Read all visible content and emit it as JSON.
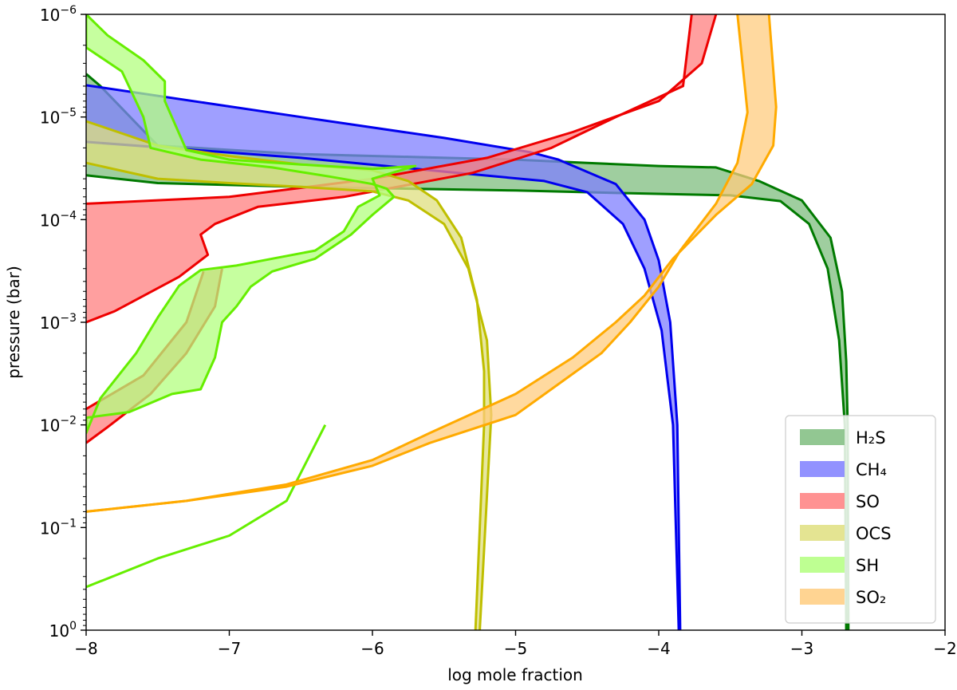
{
  "chart_data": {
    "type": "area",
    "xlabel": "log  mole fraction",
    "ylabel": "pressure (bar)",
    "xlim": [
      -8,
      -2
    ],
    "ylim": [
      1e-06,
      1
    ],
    "y_scale": "log",
    "y_inverted": true,
    "grid": false,
    "legend_position": "bottom-right",
    "x_ticks": [
      -8,
      -7,
      -6,
      -5,
      -4,
      -3,
      -2
    ],
    "x_tick_labels": [
      "−8",
      "−7",
      "−6",
      "−5",
      "−4",
      "−3",
      "−2"
    ],
    "y_ticks": [
      {
        "value": 1e-06,
        "base": "10",
        "exp": "−6"
      },
      {
        "value": 1e-05,
        "base": "10",
        "exp": "−5"
      },
      {
        "value": 0.0001,
        "base": "10",
        "exp": "−4"
      },
      {
        "value": 0.001,
        "base": "10",
        "exp": "−3"
      },
      {
        "value": 0.01,
        "base": "10",
        "exp": "−2"
      },
      {
        "value": 0.1,
        "base": "10",
        "exp": "−1"
      },
      {
        "value": 1,
        "base": "10",
        "exp": "0"
      }
    ],
    "series": [
      {
        "name": "H₂S",
        "color": "#007a00",
        "fill": "#7fbd7f",
        "band_a": [
          [
            -8,
            3.8e-06
          ],
          [
            -7.9,
            5e-06
          ],
          [
            -7.5,
            1.9e-05
          ],
          [
            -6.5,
            2.3e-05
          ],
          [
            -5,
            2.6e-05
          ],
          [
            -4.5,
            2.8e-05
          ],
          [
            -4.0,
            3e-05
          ],
          [
            -3.6,
            3.1e-05
          ],
          [
            -3.3,
            4.2e-05
          ],
          [
            -3.0,
            6.5e-05
          ],
          [
            -2.8,
            0.00015
          ],
          [
            -2.72,
            0.0005
          ],
          [
            -2.69,
            0.0024
          ],
          [
            -2.68,
            0.01
          ],
          [
            -2.675,
            1
          ]
        ],
        "band_b": [
          [
            -8,
            3.7e-05
          ],
          [
            -7.5,
            4.4e-05
          ],
          [
            -6.5,
            4.8e-05
          ],
          [
            -5,
            5.2e-05
          ],
          [
            -4.3,
            5.5e-05
          ],
          [
            -3.5,
            5.8e-05
          ],
          [
            -3.15,
            6.6e-05
          ],
          [
            -2.95,
            0.00011
          ],
          [
            -2.82,
            0.0003
          ],
          [
            -2.74,
            0.0015
          ],
          [
            -2.7,
            0.01
          ],
          [
            -2.69,
            1
          ]
        ]
      },
      {
        "name": "CH₄",
        "color": "#0000ee",
        "fill": "#7f7fff",
        "band_a": [
          [
            -8,
            4.9e-06
          ],
          [
            -6.5,
            1e-05
          ],
          [
            -5.5,
            1.6e-05
          ],
          [
            -4.9,
            2.2e-05
          ],
          [
            -4.7,
            2.6e-05
          ],
          [
            -4.3,
            4.5e-05
          ],
          [
            -4.1,
            0.0001
          ],
          [
            -4.0,
            0.00025
          ],
          [
            -3.92,
            0.001
          ],
          [
            -3.87,
            0.01
          ],
          [
            -3.85,
            1
          ]
        ],
        "band_b": [
          [
            -8,
            1.75e-05
          ],
          [
            -6.5,
            2.5e-05
          ],
          [
            -5.5,
            3.4e-05
          ],
          [
            -4.8,
            4.2e-05
          ],
          [
            -4.5,
            5.4e-05
          ],
          [
            -4.25,
            0.00011
          ],
          [
            -4.1,
            0.0003
          ],
          [
            -3.98,
            0.0012
          ],
          [
            -3.9,
            0.01
          ],
          [
            -3.86,
            1
          ]
        ]
      },
      {
        "name": "SO",
        "color": "#ee0000",
        "fill": "#ff7f7f",
        "band_a": [
          [
            -3.6,
            1e-06
          ],
          [
            -3.7,
            3e-06
          ],
          [
            -4,
            7e-06
          ],
          [
            -4.6,
            1.4e-05
          ],
          [
            -5.2,
            2.5e-05
          ],
          [
            -6,
            4e-05
          ],
          [
            -7,
            6e-05
          ],
          [
            -8,
            7e-05
          ]
        ],
        "band_b": [
          [
            -3.77,
            1e-06
          ],
          [
            -3.83,
            5e-06
          ],
          [
            -4.3,
            1e-05
          ],
          [
            -4.75,
            2e-05
          ],
          [
            -5.3,
            3.5e-05
          ],
          [
            -6.2,
            6e-05
          ],
          [
            -6.8,
            7.5e-05
          ],
          [
            -7.1,
            0.00011
          ],
          [
            -7.2,
            0.00014
          ],
          [
            -7.15,
            0.00022
          ],
          [
            -7.35,
            0.00036
          ],
          [
            -7.8,
            0.00078
          ],
          [
            -8,
            0.001
          ]
        ],
        "tail": [
          [
            -7.05,
            0.0003
          ],
          [
            -7.1,
            0.0007
          ],
          [
            -7.3,
            0.002
          ],
          [
            -7.55,
            0.005
          ],
          [
            -7.85,
            0.0105
          ],
          [
            -8,
            0.015
          ]
        ],
        "tail_b": [
          [
            -7.18,
            0.00032
          ],
          [
            -7.3,
            0.001
          ],
          [
            -7.6,
            0.0033
          ],
          [
            -8,
            0.007
          ]
        ]
      },
      {
        "name": "OCS",
        "color": "#bfbf00",
        "fill": "#dfdf7f",
        "band_a": [
          [
            -8,
            1.1e-05
          ],
          [
            -7.5,
            1.9e-05
          ],
          [
            -7,
            2.4e-05
          ],
          [
            -6.5,
            2.9e-05
          ],
          [
            -6,
            3.3e-05
          ],
          [
            -5.75,
            4.2e-05
          ],
          [
            -5.55,
            6.5e-05
          ],
          [
            -5.38,
            0.00015
          ],
          [
            -5.27,
            0.0006
          ],
          [
            -5.22,
            0.003
          ],
          [
            -5.22,
            0.01
          ],
          [
            -5.28,
            1
          ]
        ],
        "band_b": [
          [
            -8,
            2.8e-05
          ],
          [
            -7.5,
            4e-05
          ],
          [
            -7,
            4.4e-05
          ],
          [
            -6.5,
            4.8e-05
          ],
          [
            -6.0,
            5.3e-05
          ],
          [
            -5.75,
            6.5e-05
          ],
          [
            -5.5,
            0.00011
          ],
          [
            -5.33,
            0.0003
          ],
          [
            -5.2,
            0.0015
          ],
          [
            -5.17,
            0.008
          ],
          [
            -5.25,
            1
          ]
        ]
      },
      {
        "name": "SH",
        "color": "#66ee00",
        "fill": "#b3ff7f",
        "outline": [
          [
            -8,
            1e-06
          ],
          [
            -7.85,
            1.6e-06
          ],
          [
            -7.6,
            2.8e-06
          ],
          [
            -7.45,
            4.5e-06
          ],
          [
            -7.45,
            7e-06
          ],
          [
            -7.3,
            2.1e-05
          ],
          [
            -7.0,
            2.6e-05
          ],
          [
            -6.5,
            2.9e-05
          ],
          [
            -6.0,
            3.2e-05
          ],
          [
            -5.7,
            3e-05
          ],
          [
            -6.0,
            4e-05
          ],
          [
            -5.95,
            5.8e-05
          ],
          [
            -6.1,
            7.5e-05
          ],
          [
            -6.2,
            0.00013
          ],
          [
            -6.4,
            0.0002
          ],
          [
            -6.7,
            0.00024
          ],
          [
            -6.95,
            0.00028
          ],
          [
            -7.2,
            0.00031
          ],
          [
            -7.35,
            0.00044
          ],
          [
            -7.5,
            0.0009
          ],
          [
            -7.65,
            0.002
          ],
          [
            -7.9,
            0.0055
          ],
          [
            -8,
            0.012
          ],
          [
            -8,
            0.0085
          ],
          [
            -7.7,
            0.0075
          ],
          [
            -7.4,
            0.005
          ],
          [
            -7.2,
            0.0045
          ],
          [
            -7.1,
            0.0022
          ],
          [
            -7.05,
            0.001
          ],
          [
            -6.95,
            0.0007
          ],
          [
            -6.85,
            0.00045
          ],
          [
            -6.7,
            0.00032
          ],
          [
            -6.4,
            0.00024
          ],
          [
            -6.15,
            0.00014
          ],
          [
            -6.0,
            9e-05
          ],
          [
            -5.85,
            6e-05
          ],
          [
            -5.9,
            5e-05
          ],
          [
            -6.0,
            4.5e-05
          ],
          [
            -6.3,
            3.8e-05
          ],
          [
            -6.7,
            3.1e-05
          ],
          [
            -7.2,
            2.6e-05
          ],
          [
            -7.55,
            2e-05
          ],
          [
            -7.6,
            1e-05
          ],
          [
            -7.75,
            3.6e-06
          ],
          [
            -8,
            2.1e-06
          ]
        ],
        "tail": [
          [
            -8,
            0.38
          ],
          [
            -7.5,
            0.2
          ],
          [
            -7,
            0.12
          ],
          [
            -6.6,
            0.055
          ],
          [
            -6.33,
            0.01
          ]
        ]
      },
      {
        "name": "SO₂",
        "color": "#ffaa00",
        "fill": "#ffcc7f",
        "band_a": [
          [
            -8,
            0.07
          ],
          [
            -7.3,
            0.055
          ],
          [
            -6.6,
            0.04
          ],
          [
            -6.0,
            0.025
          ],
          [
            -5.6,
            0.015
          ],
          [
            -5.0,
            0.008
          ],
          [
            -4.7,
            0.004
          ],
          [
            -4.4,
            0.002
          ],
          [
            -4.2,
            0.001
          ],
          [
            -4.0,
            0.00045
          ],
          [
            -3.85,
            0.0002
          ],
          [
            -3.6,
            7e-05
          ],
          [
            -3.45,
            2.8e-05
          ],
          [
            -3.38,
            9e-06
          ],
          [
            -3.45,
            1e-06
          ]
        ],
        "band_b": [
          [
            -8,
            0.07
          ],
          [
            -7.3,
            0.055
          ],
          [
            -6.6,
            0.038
          ],
          [
            -6.0,
            0.022
          ],
          [
            -5.6,
            0.012
          ],
          [
            -5.0,
            0.005
          ],
          [
            -4.6,
            0.0022
          ],
          [
            -4.3,
            0.001
          ],
          [
            -4.1,
            0.00055
          ],
          [
            -3.9,
            0.00024
          ],
          [
            -3.6,
            9e-05
          ],
          [
            -3.35,
            4.5e-05
          ],
          [
            -3.2,
            1.9e-05
          ],
          [
            -3.18,
            8e-06
          ],
          [
            -3.23,
            1e-06
          ]
        ]
      }
    ]
  }
}
